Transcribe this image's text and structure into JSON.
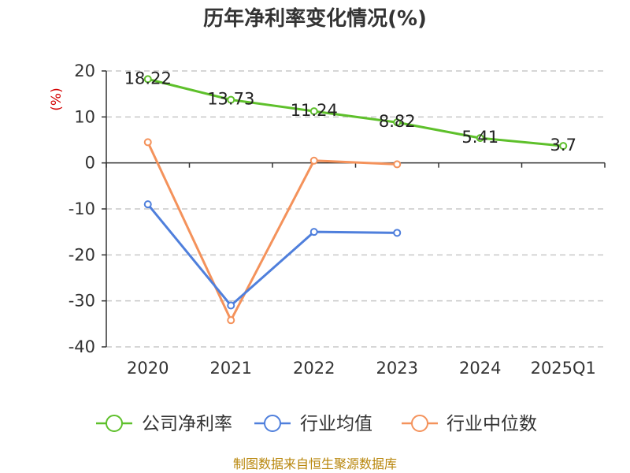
{
  "chart_data": {
    "type": "line",
    "title": "历年净利率变化情况(%)",
    "ylabel": "(%)",
    "xlabel": "",
    "categories": [
      "2020",
      "2021",
      "2022",
      "2023",
      "2024",
      "2025Q1"
    ],
    "ylim": [
      -40,
      20
    ],
    "yticks": [
      20,
      10,
      0,
      -10,
      -20,
      -30,
      -40
    ],
    "grid": true,
    "legend_position": "bottom",
    "series": [
      {
        "name": "公司净利率",
        "color": "#5ec02b",
        "values": [
          18.22,
          13.73,
          11.24,
          8.82,
          5.41,
          3.7
        ],
        "labels": [
          "18.22",
          "13.73",
          "11.24",
          "8.82",
          "5.41",
          "3.7"
        ]
      },
      {
        "name": "行业均值",
        "color": "#4f7fdc",
        "values": [
          -9,
          -31,
          -15,
          -15.2,
          null,
          null
        ]
      },
      {
        "name": "行业中位数",
        "color": "#f4925b",
        "values": [
          4.5,
          -34.2,
          0.5,
          -0.3,
          null,
          null
        ]
      }
    ]
  },
  "source_text": "制图数据来自恒生聚源数据库"
}
